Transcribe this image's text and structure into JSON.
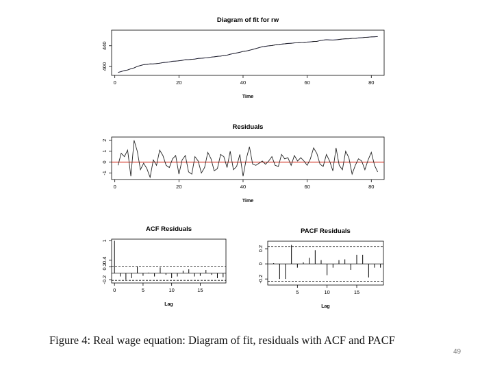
{
  "caption": "Figure 4: Real wage equation: Diagram of fit, residuals with ACF and PACF",
  "page_number": "49",
  "colors": {
    "fit_line": "#2a2a8c",
    "actual_line": "#222222",
    "zero_line": "#d02010",
    "axis": "#000000",
    "conf_band": "#000000"
  },
  "chart_data": [
    {
      "type": "line",
      "title": "Diagram of fit for rw",
      "xlabel": "Time",
      "ylabel": "",
      "xlim": [
        -1,
        84
      ],
      "ylim": [
        383,
        470
      ],
      "x_ticks": [
        0,
        20,
        40,
        60,
        80
      ],
      "y_ticks": [
        400,
        440
      ],
      "x": [
        1,
        2,
        3,
        4,
        5,
        6,
        7,
        8,
        9,
        10,
        11,
        12,
        13,
        14,
        15,
        16,
        17,
        18,
        19,
        20,
        21,
        22,
        23,
        24,
        25,
        26,
        27,
        28,
        29,
        30,
        31,
        32,
        33,
        34,
        35,
        36,
        37,
        38,
        39,
        40,
        41,
        42,
        43,
        44,
        45,
        46,
        47,
        48,
        49,
        50,
        51,
        52,
        53,
        54,
        55,
        56,
        57,
        58,
        59,
        60,
        61,
        62,
        63,
        64,
        65,
        66,
        67,
        68,
        69,
        70,
        71,
        72,
        73,
        74,
        75,
        76,
        77,
        78,
        79,
        80,
        81,
        82
      ],
      "series": [
        {
          "values": [
            388.5,
            390.5,
            392,
            393.5,
            395.5,
            397.5,
            400.2,
            402,
            403.5,
            404.3,
            405,
            405.2,
            405.5,
            406.5,
            407.5,
            408,
            409,
            410,
            410.5,
            411,
            412,
            413,
            413.3,
            413.8,
            414.5,
            415.5,
            416,
            416.3,
            417,
            418,
            418.8,
            419.5,
            420.2,
            421,
            422,
            423.5,
            425,
            426,
            427.5,
            429,
            430,
            431.2,
            433,
            434.5,
            436.5,
            438,
            439,
            439.8,
            440.5,
            441.5,
            442.5,
            443,
            443.8,
            444.3,
            444.8,
            445.3,
            445.8,
            446,
            446.5,
            447,
            447.5,
            448,
            448.5,
            449.8,
            451,
            451.5,
            451.3,
            451,
            451.5,
            452,
            453,
            453.3,
            453.5,
            454,
            454.2,
            455,
            455.5,
            456,
            456.5,
            457,
            457.3,
            457.5
          ]
        },
        {
          "values": [
            388.7,
            390.3,
            392.2,
            393.3,
            395.8,
            397.2,
            400.4,
            401.8,
            403.7,
            404.1,
            405.2,
            405,
            405.8,
            406.3,
            407.7,
            408.2,
            408.8,
            410.3,
            410.3,
            411.2,
            411.8,
            413.2,
            413.1,
            414,
            414.3,
            415.7,
            415.8,
            416.5,
            416.8,
            418.2,
            418.6,
            419.7,
            420,
            421.2,
            421.8,
            423.7,
            424.8,
            426.2,
            427.3,
            429.2,
            429.8,
            431.4,
            432.8,
            434.7,
            436.3,
            438.2,
            438.8,
            440,
            440.3,
            441.7,
            442.3,
            443.2,
            443.6,
            444.5,
            444.6,
            445.5,
            445.6,
            446.2,
            446.3,
            447.2,
            447.3,
            448.2,
            448.3,
            450,
            450.8,
            451.7,
            451.1,
            451.2,
            451.3,
            452.2,
            452.8,
            453.5,
            453.3,
            454.2,
            454,
            455.2,
            455.3,
            456.2,
            456.3,
            457.2,
            457.1,
            457.7
          ]
        }
      ]
    },
    {
      "type": "line",
      "title": "Residuals",
      "xlabel": "Time",
      "ylabel": "",
      "xlim": [
        -1,
        84
      ],
      "ylim": [
        -1.6,
        2.3
      ],
      "x_ticks": [
        0,
        20,
        40,
        60,
        80
      ],
      "y_ticks": [
        -1,
        0,
        1,
        2
      ],
      "x": [
        1,
        2,
        3,
        4,
        5,
        6,
        7,
        8,
        9,
        10,
        11,
        12,
        13,
        14,
        15,
        16,
        17,
        18,
        19,
        20,
        21,
        22,
        23,
        24,
        25,
        26,
        27,
        28,
        29,
        30,
        31,
        32,
        33,
        34,
        35,
        36,
        37,
        38,
        39,
        40,
        41,
        42,
        43,
        44,
        45,
        46,
        47,
        48,
        49,
        50,
        51,
        52,
        53,
        54,
        55,
        56,
        57,
        58,
        59,
        60,
        61,
        62,
        63,
        64,
        65,
        66,
        67,
        68,
        69,
        70,
        71,
        72,
        73,
        74,
        75,
        76,
        77,
        78,
        79,
        80,
        81,
        82
      ],
      "series": [
        {
          "values": [
            -0.3,
            0.8,
            0.5,
            1.1,
            -1.3,
            2.0,
            1.0,
            -0.7,
            -0.1,
            -0.6,
            -1.4,
            0.2,
            -0.3,
            1.1,
            0.6,
            -0.3,
            -0.5,
            0.3,
            0.6,
            -1.1,
            0.2,
            0.6,
            -0.9,
            -1.1,
            0.5,
            0.1,
            -1.0,
            -0.5,
            0.9,
            0.3,
            -0.8,
            -0.6,
            0.7,
            0.5,
            -0.5,
            1.0,
            -0.7,
            -0.4,
            0.7,
            -1.3,
            0.3,
            1.4,
            -0.2,
            -0.3,
            -0.1,
            0.1,
            -0.2,
            0.1,
            0.5,
            -0.3,
            -0.4,
            0.7,
            0.3,
            0.4,
            -0.3,
            0.6,
            0.1,
            0.4,
            0.1,
            -0.3,
            0.3,
            1.3,
            0.8,
            -0.2,
            -0.4,
            0.7,
            0.1,
            -0.8,
            1.3,
            -0.3,
            -0.7,
            1.0,
            0.4,
            -1.1,
            -0.3,
            0.3,
            0.1,
            -0.7,
            0.2,
            0.9,
            -0.3,
            -0.9
          ]
        }
      ]
    },
    {
      "type": "bar",
      "title": "ACF Residuals",
      "xlabel": "Lag",
      "ylabel": "",
      "xlim": [
        -0.5,
        19.5
      ],
      "ylim": [
        -0.3,
        1.05
      ],
      "x_ticks": [
        0,
        5,
        10,
        15
      ],
      "y_ticks": [
        -0.2,
        0.2,
        0.4,
        1.0
      ],
      "conf_band": [
        -0.22,
        0.22
      ],
      "x": [
        0,
        1,
        2,
        3,
        4,
        5,
        6,
        7,
        8,
        9,
        10,
        11,
        12,
        13,
        14,
        15,
        16,
        17,
        18,
        19
      ],
      "values": [
        1.0,
        -0.1,
        -0.2,
        -0.15,
        0.2,
        -0.08,
        0.02,
        -0.1,
        0.18,
        -0.05,
        -0.15,
        -0.1,
        0.08,
        0.12,
        -0.1,
        -0.08,
        0.1,
        -0.05,
        -0.15,
        -0.12
      ]
    },
    {
      "type": "bar",
      "title": "PACF Residuals",
      "xlabel": "Lag",
      "ylabel": "",
      "xlim": [
        0,
        19.5
      ],
      "ylim": [
        -0.28,
        0.3
      ],
      "x_ticks": [
        5,
        10,
        15
      ],
      "y_ticks": [
        -0.2,
        0.0,
        0.2
      ],
      "conf_band": [
        -0.23,
        0.23
      ],
      "x": [
        1,
        2,
        3,
        4,
        5,
        6,
        7,
        8,
        9,
        10,
        11,
        12,
        13,
        14,
        15,
        16,
        17,
        18,
        19
      ],
      "values": [
        0.01,
        -0.2,
        -0.2,
        0.25,
        -0.05,
        0.02,
        0.08,
        0.18,
        0.05,
        -0.15,
        -0.05,
        0.05,
        0.06,
        -0.08,
        0.12,
        0.12,
        -0.18,
        -0.05,
        -0.05
      ]
    }
  ]
}
